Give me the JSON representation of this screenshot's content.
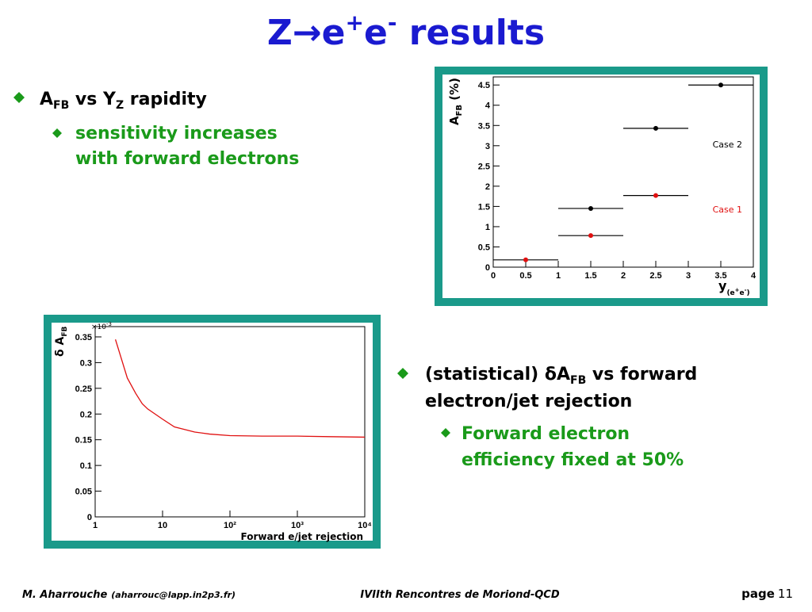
{
  "title": [
    "Z→e",
    "+",
    "e",
    "-",
    " results"
  ],
  "bullets": [
    {
      "text": [
        "A",
        "FB",
        " vs Y",
        "Z",
        " rapidity"
      ],
      "sub": [
        "sensitivity increases",
        "with forward electrons"
      ]
    },
    {
      "text": [
        "(statistical) δA",
        "FB",
        " vs forward",
        "electron/jet rejection"
      ],
      "sub": [
        "Forward electron",
        "efficiency fixed at 50%"
      ]
    }
  ],
  "chart_data": [
    {
      "type": "scatter",
      "ylabel": [
        "A",
        "FB",
        " (%)"
      ],
      "xlabel": [
        "y",
        "(e",
        "+",
        "e",
        "-",
        ")"
      ],
      "xlim": [
        0,
        4
      ],
      "xticks": [
        0,
        0.5,
        1,
        1.5,
        2,
        2.5,
        3,
        3.5,
        4
      ],
      "ylim": [
        0,
        4.7
      ],
      "yticks": [
        0,
        0.5,
        1,
        1.5,
        2,
        2.5,
        3,
        3.5,
        4,
        4.5
      ],
      "series": [
        {
          "name": "Case 2",
          "color": "#000000",
          "x": [
            1.5,
            2.5,
            3.5
          ],
          "xerr": [
            0.5,
            0.5,
            0.5
          ],
          "values": [
            1.45,
            3.43,
            4.5
          ]
        },
        {
          "name": "Case 1",
          "color": "#e01010",
          "x": [
            0.5,
            1.5,
            2.5
          ],
          "xerr": [
            0.5,
            0.5,
            0.5
          ],
          "values": [
            0.18,
            0.78,
            1.77
          ]
        }
      ]
    },
    {
      "type": "line",
      "ylabel": [
        "δ A",
        "FB"
      ],
      "xlabel": "Forward e/jet rejection",
      "y_multiplier": [
        "×10",
        "-3"
      ],
      "log_x": true,
      "xlim": [
        1,
        10000
      ],
      "xticks": [
        1,
        10,
        {
          "value": 100,
          "label": "10²"
        },
        {
          "value": 1000,
          "label": "10³"
        },
        {
          "value": 10000,
          "label": "10⁴"
        }
      ],
      "ylim": [
        0,
        0.37
      ],
      "yticks": [
        0,
        0.05,
        0.1,
        0.15,
        0.2,
        0.25,
        0.3,
        0.35
      ],
      "series": [
        {
          "color": "#e01010",
          "x": [
            2,
            3,
            4,
            5,
            6,
            10,
            15,
            30,
            50,
            100,
            300,
            1000,
            3000,
            10000
          ],
          "values": [
            0.345,
            0.27,
            0.24,
            0.22,
            0.21,
            0.19,
            0.175,
            0.165,
            0.161,
            0.158,
            0.157,
            0.157,
            0.156,
            0.155
          ]
        }
      ]
    }
  ],
  "footer": {
    "author": "M. Aharrouche",
    "email": "(aharrouc@lapp.in2p3.fr)",
    "event": "IVIIth Rencontres de Moriond-QCD",
    "page_label": "page",
    "page_number": 11
  }
}
